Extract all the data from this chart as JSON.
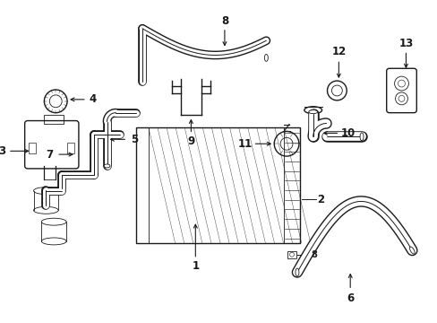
{
  "bg_color": "#ffffff",
  "line_color": "#1a1a1a",
  "lw": 1.0,
  "tlw": 0.6,
  "figsize": [
    4.89,
    3.6
  ],
  "dpi": 100,
  "xlim": [
    0,
    489
  ],
  "ylim": [
    0,
    360
  ]
}
